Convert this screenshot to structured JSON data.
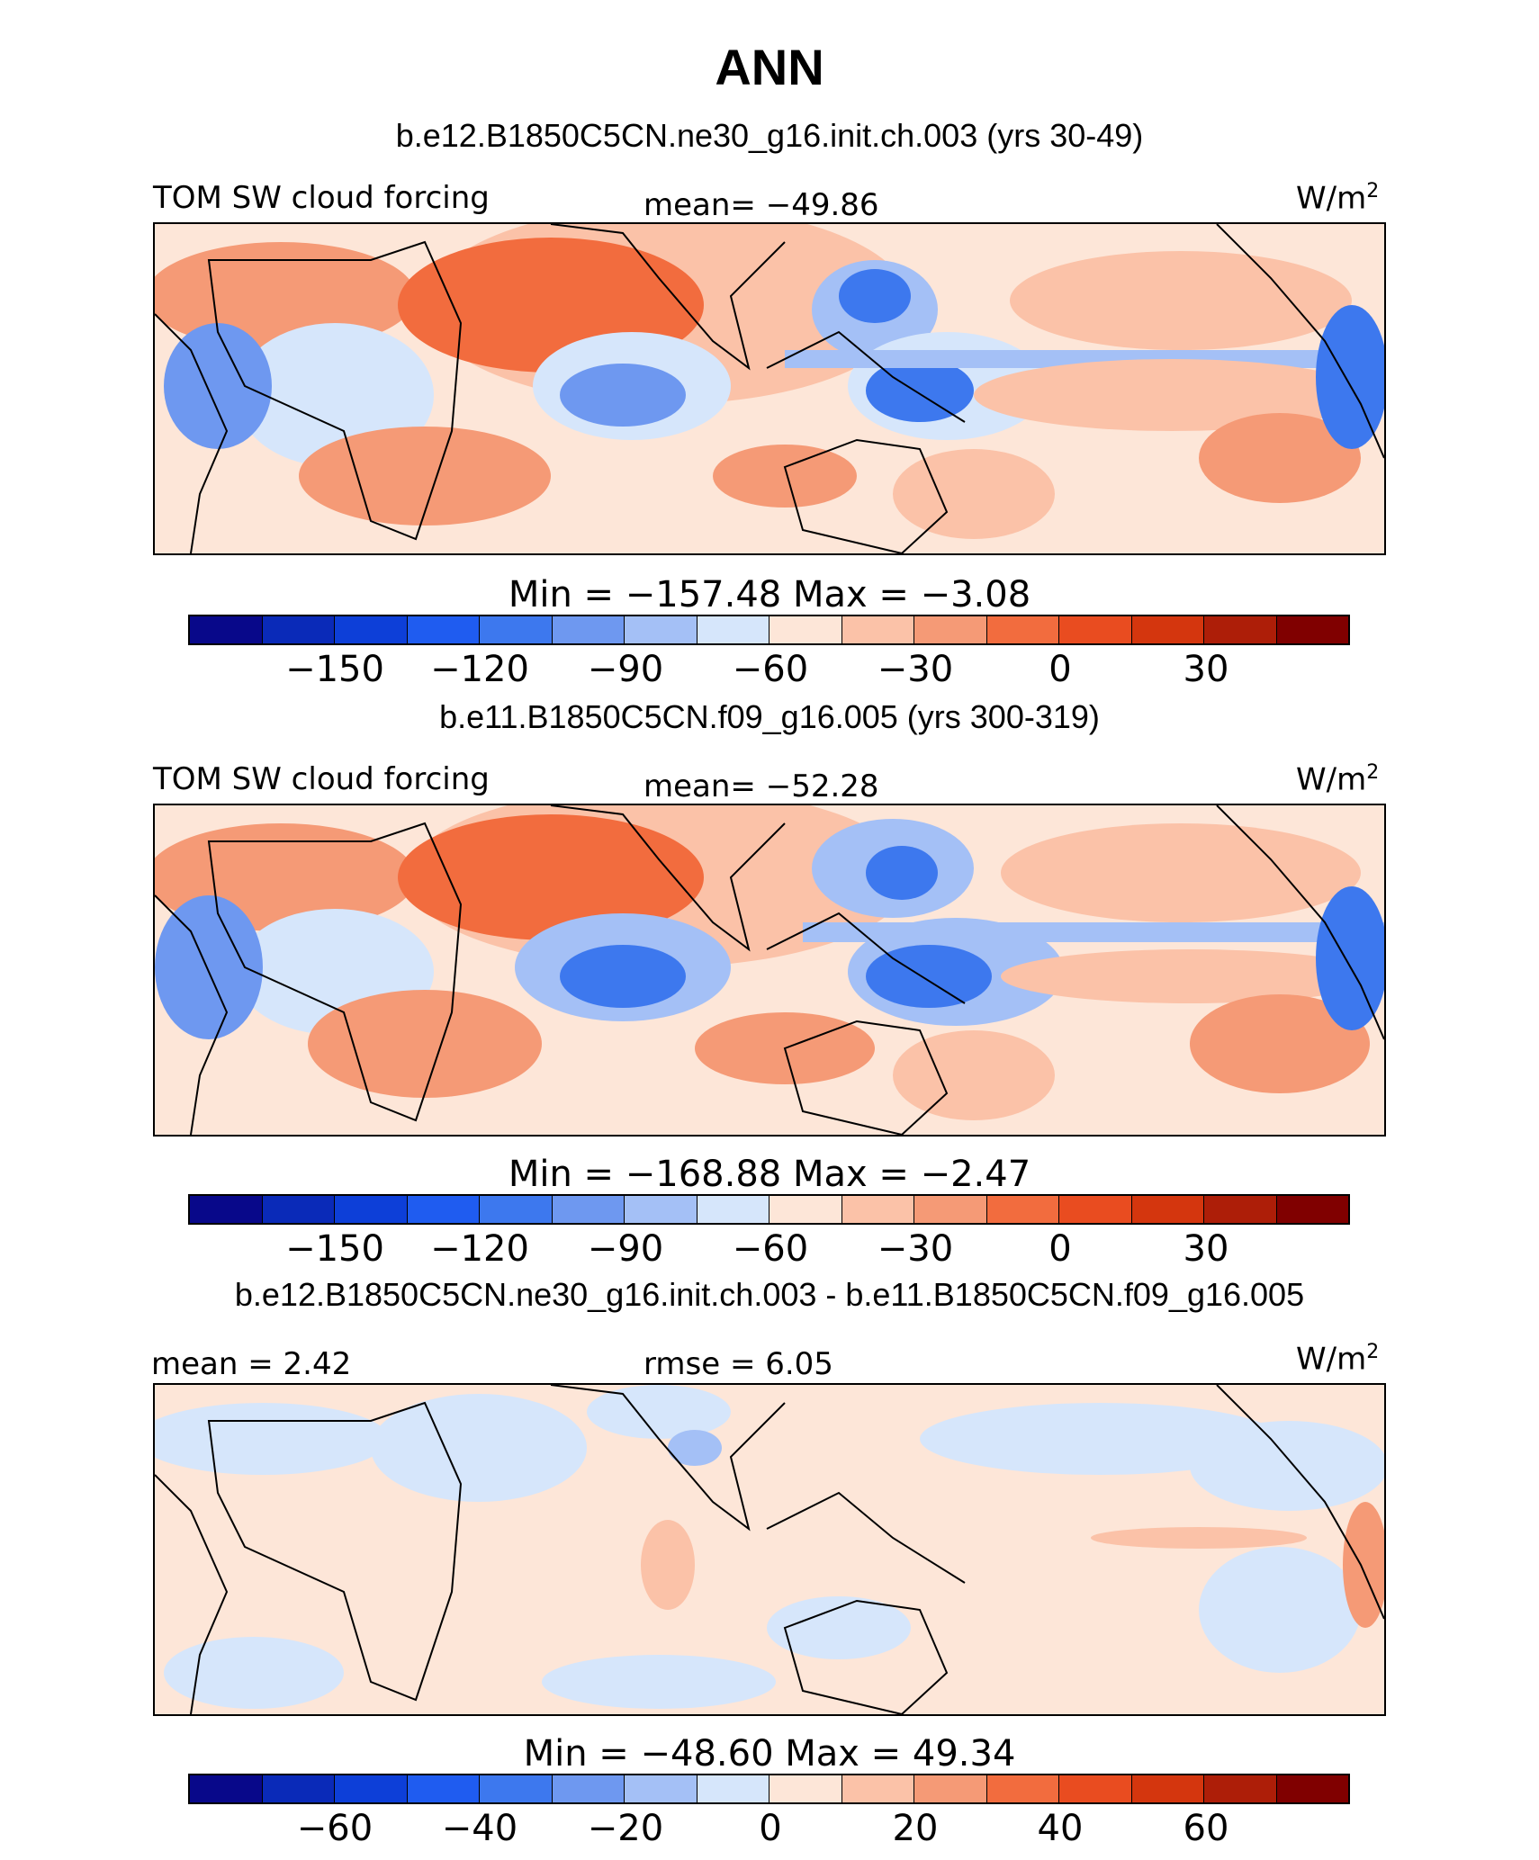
{
  "title": "ANN",
  "panels": [
    {
      "case": "b.e12.B1850C5CN.ne30_g16.init.ch.003 (yrs 30-49)",
      "variable": "TOM SW cloud forcing",
      "stat_left": "",
      "stat_mid": "mean=  −49.86",
      "units": "W/m",
      "units_sup": "2",
      "minmax": "Min  =  −157.48  Max  =   −3.08",
      "colorbar_ticks": [
        "−150",
        "−120",
        "−90",
        "−60",
        "−30",
        "0",
        "30"
      ]
    },
    {
      "case": "b.e11.B1850C5CN.f09_g16.005 (yrs 300-319)",
      "variable": "TOM SW cloud forcing",
      "stat_left": "",
      "stat_mid": "mean=  −52.28",
      "units": "W/m",
      "units_sup": "2",
      "minmax": "Min  =  −168.88  Max  =   −2.47",
      "colorbar_ticks": [
        "−150",
        "−120",
        "−90",
        "−60",
        "−30",
        "0",
        "30"
      ]
    },
    {
      "case": "b.e12.B1850C5CN.ne30_g16.init.ch.003 - b.e11.B1850C5CN.f09_g16.005",
      "variable": "",
      "stat_left": "mean  =    2.42",
      "stat_mid": "rmse  =     6.05",
      "units": "W/m",
      "units_sup": "2",
      "minmax": "Min  =  −48.60  Max  =   49.34",
      "colorbar_ticks": [
        "−60",
        "−40",
        "−20",
        "0",
        "20",
        "40",
        "60"
      ]
    }
  ],
  "colors": {
    "colorbar": [
      "#08088a",
      "#0a2ab8",
      "#0d3fd8",
      "#1f5cf0",
      "#3d78ee",
      "#6e98f0",
      "#a4c0f6",
      "#d6e6fb",
      "#fde6d8",
      "#fbc2a8",
      "#f59a76",
      "#f26c3e",
      "#e94c20",
      "#d4360e",
      "#ad1e08",
      "#800000"
    ],
    "ocean_base": "#fde6d8"
  },
  "chart_data": [
    {
      "type": "heatmap",
      "title": "TOM SW cloud forcing",
      "units": "W/m2",
      "mean": -49.86,
      "min": -157.48,
      "max": -3.08,
      "contour_levels": [
        -165,
        -150,
        -135,
        -120,
        -105,
        -90,
        -75,
        -60,
        -45,
        -30,
        -15,
        0,
        15,
        30,
        45
      ],
      "colorbar_tick_values": [
        -150,
        -120,
        -90,
        -60,
        -30,
        0,
        30
      ]
    },
    {
      "type": "heatmap",
      "title": "TOM SW cloud forcing",
      "units": "W/m2",
      "mean": -52.28,
      "min": -168.88,
      "max": -2.47,
      "contour_levels": [
        -165,
        -150,
        -135,
        -120,
        -105,
        -90,
        -75,
        -60,
        -45,
        -30,
        -15,
        0,
        15,
        30,
        45
      ],
      "colorbar_tick_values": [
        -150,
        -120,
        -90,
        -60,
        -30,
        0,
        30
      ]
    },
    {
      "type": "heatmap",
      "title": "",
      "units": "W/m2",
      "mean": 2.42,
      "rmse": 6.05,
      "min": -48.6,
      "max": 49.34,
      "contour_levels": [
        -70,
        -60,
        -50,
        -40,
        -30,
        -20,
        -10,
        0,
        10,
        20,
        30,
        40,
        50,
        60,
        70
      ],
      "colorbar_tick_values": [
        -60,
        -40,
        -20,
        0,
        20,
        40,
        60
      ]
    }
  ]
}
